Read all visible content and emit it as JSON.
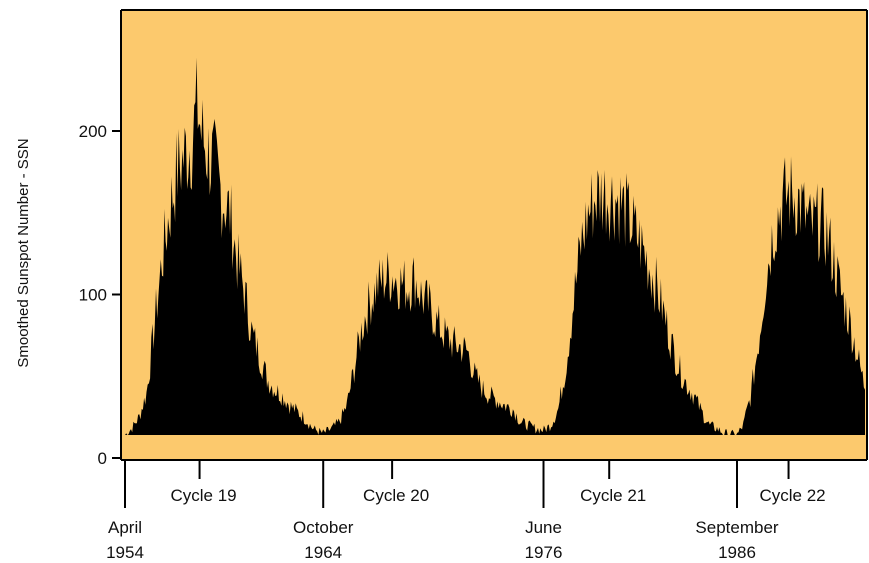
{
  "chart_data": {
    "type": "area",
    "title": "",
    "xlabel": "",
    "ylabel": "Smoothed Sunspot Number - SSN",
    "ylim": [
      0,
      265
    ],
    "yticks": [
      0,
      100,
      200
    ],
    "ytick_labels": [
      "0",
      "100",
      "200"
    ],
    "background_color": "#fcc96d",
    "fill_color": "#000000",
    "grid": false,
    "legend": "none",
    "cycle_boundaries": [
      {
        "month": "April",
        "year": "1954",
        "t": 1954.25
      },
      {
        "month": "October",
        "year": "1964",
        "t": 1964.75
      },
      {
        "month": "June",
        "year": "1976",
        "t": 1976.42
      },
      {
        "month": "September",
        "year": "1986",
        "t": 1986.67
      }
    ],
    "cycles": [
      {
        "label": "Cycle 19",
        "t": 1958.2
      },
      {
        "label": "Cycle 20",
        "t": 1968.4
      },
      {
        "label": "Cycle 21",
        "t": 1979.9
      },
      {
        "label": "Cycle 22",
        "t": 1989.4
      }
    ],
    "series": [
      {
        "values": [
          [
            1954.25,
            14
          ],
          [
            1954.6,
            18
          ],
          [
            1955.0,
            25
          ],
          [
            1955.4,
            40
          ],
          [
            1955.8,
            80
          ],
          [
            1956.2,
            120
          ],
          [
            1956.6,
            150
          ],
          [
            1957.0,
            175
          ],
          [
            1957.4,
            185
          ],
          [
            1957.8,
            195
          ],
          [
            1958.1,
            215
          ],
          [
            1958.3,
            198
          ],
          [
            1958.6,
            188
          ],
          [
            1959.0,
            178
          ],
          [
            1959.4,
            160
          ],
          [
            1959.8,
            150
          ],
          [
            1960.2,
            120
          ],
          [
            1960.6,
            100
          ],
          [
            1961.0,
            75
          ],
          [
            1961.4,
            62
          ],
          [
            1961.8,
            48
          ],
          [
            1962.2,
            42
          ],
          [
            1962.6,
            38
          ],
          [
            1963.0,
            32
          ],
          [
            1963.4,
            28
          ],
          [
            1963.8,
            24
          ],
          [
            1964.2,
            18
          ],
          [
            1964.75,
            15
          ],
          [
            1965.2,
            18
          ],
          [
            1965.6,
            22
          ],
          [
            1966.0,
            32
          ],
          [
            1966.4,
            55
          ],
          [
            1966.8,
            80
          ],
          [
            1967.2,
            95
          ],
          [
            1967.6,
            105
          ],
          [
            1968.0,
            110
          ],
          [
            1968.4,
            112
          ],
          [
            1968.8,
            108
          ],
          [
            1969.2,
            105
          ],
          [
            1969.6,
            110
          ],
          [
            1970.0,
            98
          ],
          [
            1970.4,
            92
          ],
          [
            1970.8,
            82
          ],
          [
            1971.2,
            75
          ],
          [
            1971.6,
            70
          ],
          [
            1972.0,
            68
          ],
          [
            1972.4,
            65
          ],
          [
            1972.8,
            50
          ],
          [
            1973.2,
            42
          ],
          [
            1973.6,
            38
          ],
          [
            1974.0,
            35
          ],
          [
            1974.4,
            32
          ],
          [
            1974.8,
            30
          ],
          [
            1975.2,
            22
          ],
          [
            1975.6,
            20
          ],
          [
            1976.0,
            18
          ],
          [
            1976.42,
            17
          ],
          [
            1976.8,
            20
          ],
          [
            1977.2,
            30
          ],
          [
            1977.6,
            55
          ],
          [
            1978.0,
            95
          ],
          [
            1978.4,
            130
          ],
          [
            1978.8,
            150
          ],
          [
            1979.2,
            160
          ],
          [
            1979.6,
            162
          ],
          [
            1980.0,
            160
          ],
          [
            1980.4,
            158
          ],
          [
            1980.8,
            150
          ],
          [
            1981.2,
            140
          ],
          [
            1981.6,
            130
          ],
          [
            1982.0,
            118
          ],
          [
            1982.4,
            105
          ],
          [
            1982.8,
            88
          ],
          [
            1983.2,
            70
          ],
          [
            1983.6,
            55
          ],
          [
            1984.0,
            45
          ],
          [
            1984.4,
            38
          ],
          [
            1984.8,
            28
          ],
          [
            1985.2,
            20
          ],
          [
            1985.6,
            18
          ],
          [
            1986.0,
            15
          ],
          [
            1986.67,
            14
          ],
          [
            1987.0,
            20
          ],
          [
            1987.4,
            38
          ],
          [
            1987.8,
            70
          ],
          [
            1988.2,
            110
          ],
          [
            1988.6,
            140
          ],
          [
            1989.0,
            155
          ],
          [
            1989.4,
            162
          ],
          [
            1989.8,
            160
          ],
          [
            1990.2,
            150
          ],
          [
            1990.6,
            140
          ],
          [
            1991.0,
            145
          ],
          [
            1991.4,
            138
          ],
          [
            1991.8,
            120
          ],
          [
            1992.2,
            100
          ],
          [
            1992.6,
            85
          ],
          [
            1993.0,
            65
          ],
          [
            1993.4,
            45
          ]
        ]
      }
    ]
  }
}
